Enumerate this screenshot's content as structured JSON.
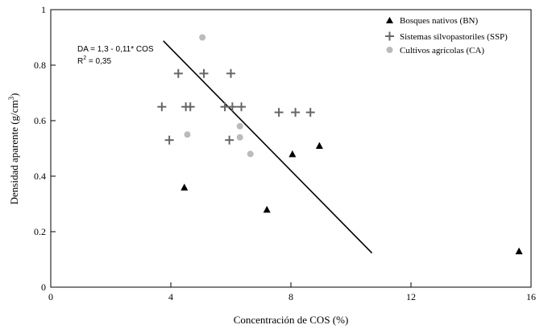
{
  "chart_data": {
    "type": "scatter",
    "xlabel": "Concentración de COS (%)",
    "ylabel_main": "Densidad aparente (g/cm",
    "ylabel_sup": "3",
    "ylabel_close": ")",
    "xlim": [
      0,
      16
    ],
    "ylim": [
      0,
      1
    ],
    "xticks": [
      0,
      4,
      8,
      12,
      16
    ],
    "yticks": [
      0,
      0.2,
      0.4,
      0.6,
      0.8,
      1
    ],
    "xtick_labels": [
      "0",
      "4",
      "8",
      "12",
      "16"
    ],
    "ytick_labels": [
      "0",
      "0.2",
      "0.4",
      "0.6",
      "0.8",
      "1"
    ],
    "series": [
      {
        "name": "Bosques nativos (BN)",
        "marker": "triangle",
        "color": "#000000",
        "points": [
          [
            4.45,
            0.36
          ],
          [
            7.2,
            0.28
          ],
          [
            8.05,
            0.48
          ],
          [
            8.95,
            0.51
          ],
          [
            15.6,
            0.13
          ]
        ]
      },
      {
        "name": "Sistemas silvopastoriles (SSP)",
        "marker": "plus",
        "color": "#666666",
        "points": [
          [
            3.7,
            0.65
          ],
          [
            3.95,
            0.53
          ],
          [
            4.25,
            0.77
          ],
          [
            4.5,
            0.65
          ],
          [
            4.65,
            0.65
          ],
          [
            5.1,
            0.77
          ],
          [
            5.8,
            0.65
          ],
          [
            5.95,
            0.53
          ],
          [
            6.0,
            0.77
          ],
          [
            6.05,
            0.65
          ],
          [
            6.35,
            0.65
          ],
          [
            7.6,
            0.63
          ],
          [
            8.15,
            0.63
          ],
          [
            8.65,
            0.63
          ]
        ]
      },
      {
        "name": "Cultivos agrícolas (CA)",
        "marker": "circle",
        "color": "#bbbbbb",
        "points": [
          [
            5.05,
            0.9
          ],
          [
            4.55,
            0.55
          ],
          [
            6.3,
            0.58
          ],
          [
            6.3,
            0.54
          ],
          [
            6.65,
            0.48
          ]
        ]
      }
    ],
    "regression": {
      "equation": "DA = 1,3 - 0,11* COS",
      "r2_label": "R",
      "r2_sup": "2",
      "r2_value": " = 0,35",
      "x_start": 3.75,
      "x_end": 10.7,
      "intercept": 1.3,
      "slope": -0.11
    },
    "legend_position": "top-right"
  }
}
